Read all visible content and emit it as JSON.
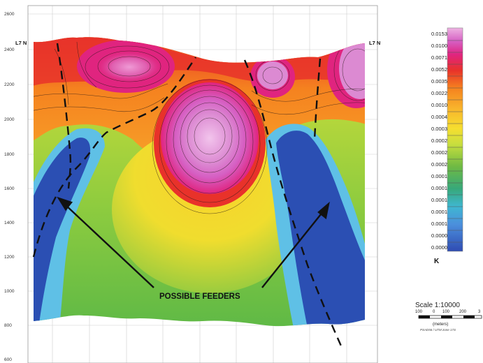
{
  "section": {
    "line_label_left": "L7 N",
    "line_label_right": "L7 N",
    "elevation_ticks": [
      2600,
      2400,
      2200,
      2000,
      1800,
      1600,
      1400,
      1200,
      1000,
      800,
      600
    ],
    "annotation": "POSSIBLE FEEDERS",
    "feature_name": "feeder",
    "colors": {
      "low": "#2b4fb3",
      "medium_low": "#5fc0e6",
      "medium": "#7cc342",
      "medium_high": "#f2d21a",
      "high": "#e8322a",
      "very_high": "#dd8ad0"
    }
  },
  "legend": {
    "values": [
      "0.0153",
      "0.0100",
      "0.0071",
      "0.0052",
      "0.0035",
      "0.0022",
      "0.0010",
      "0.0004",
      "0.0003",
      "0.0002",
      "0.0002",
      "0.0002",
      "0.0001",
      "0.0001",
      "0.0001",
      "0.0001",
      "0.0001",
      "0.0000",
      "0.0000"
    ],
    "colors": [
      "#e8a6de",
      "#d65fc3",
      "#e0247f",
      "#e8322a",
      "#ef5a22",
      "#f5821f",
      "#f7a42a",
      "#f8c62e",
      "#f6de2f",
      "#ecec3a",
      "#c8de3e",
      "#9acc3f",
      "#6fba43",
      "#4caf4d",
      "#37a880",
      "#3fb7d1",
      "#4b9be1",
      "#3f6fcc",
      "#2f4bb2"
    ],
    "unit": "K"
  },
  "scale_bar": {
    "title": "Scale 1:10000",
    "ticks": [
      "100",
      "0",
      "100",
      "200",
      "3"
    ],
    "unit": "(meters)",
    "projection": "PSAD56 / UTM zone 17S"
  }
}
